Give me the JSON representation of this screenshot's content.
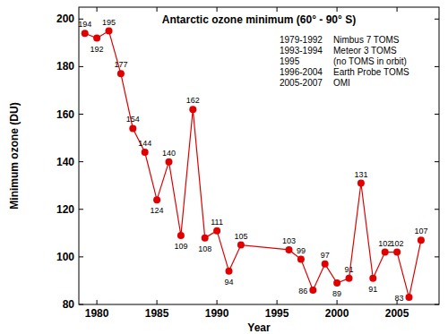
{
  "chart_data": {
    "type": "line",
    "title": "Antarctic ozone minimum (60° - 90° S)",
    "x_label": "Year",
    "y_label": "Minimum ozone (DU)",
    "annotations": [
      {
        "period": "1979-1992",
        "instrument": "Nimbus 7 TOMS"
      },
      {
        "period": "1993-1994",
        "instrument": "Meteor 3 TOMS"
      },
      {
        "period": "1995",
        "instrument": "(no TOMS in orbit)"
      },
      {
        "period": "1996-2004",
        "instrument": "Earth Probe TOMS"
      },
      {
        "period": "2005-2007",
        "instrument": "OMI"
      }
    ],
    "x": [
      1979,
      1980,
      1981,
      1982,
      1983,
      1984,
      1985,
      1986,
      1987,
      1988,
      1989,
      1990,
      1991,
      1992,
      1996,
      1997,
      1998,
      1999,
      2000,
      2001,
      2002,
      2003,
      2004,
      2005,
      2006,
      2007
    ],
    "values": [
      194,
      192,
      195,
      177,
      154,
      144,
      124,
      140,
      109,
      162,
      108,
      111,
      94,
      105,
      103,
      99,
      86,
      97,
      89,
      91,
      131,
      91,
      102,
      102,
      83,
      107
    ],
    "color": "#e00000",
    "marker": "circle",
    "line_style": "solid",
    "data_labels": true,
    "grid": false,
    "xlim": [
      1978.5,
      2008.5
    ],
    "xticks": [
      1980,
      1985,
      1990,
      1995,
      2000,
      2005
    ],
    "ylim": [
      80,
      205
    ],
    "yticks": [
      80,
      100,
      120,
      140,
      160,
      180,
      200
    ]
  }
}
